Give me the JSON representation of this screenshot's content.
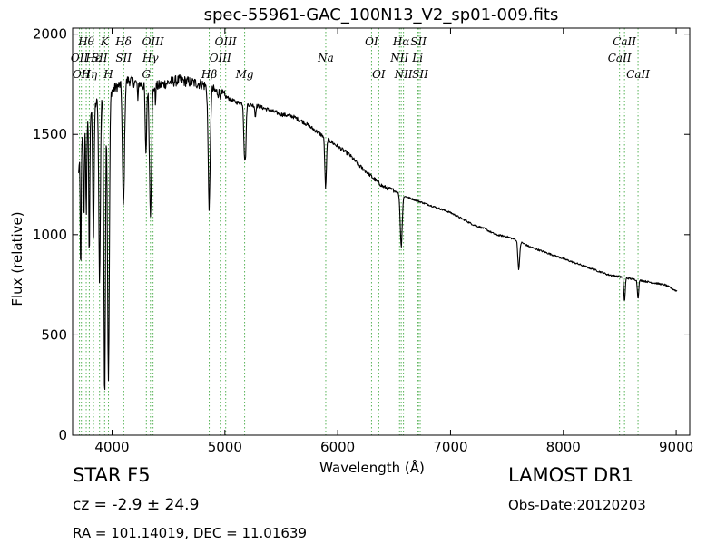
{
  "chart_data": {
    "type": "line",
    "title": "spec-55961-GAC_100N13_V2_sp01-009.fits",
    "xlabel": "Wavelength (Å)",
    "ylabel": "Flux (relative)",
    "xlim": [
      3650,
      9120
    ],
    "ylim": [
      0,
      2030
    ],
    "x_ticks": [
      4000,
      5000,
      6000,
      7000,
      8000,
      9000
    ],
    "y_ticks": [
      0,
      500,
      1000,
      1500,
      2000
    ],
    "grid": false,
    "line_color": "#000000",
    "marker_color": "#2ca02c",
    "continuum": {
      "x": [
        3700,
        3730,
        3760,
        3800,
        3850,
        3900,
        3950,
        4000,
        4050,
        4100,
        4150,
        4200,
        4250,
        4300,
        4350,
        4400,
        4450,
        4500,
        4600,
        4700,
        4800,
        4900,
        5000,
        5100,
        5200,
        5300,
        5400,
        5500,
        5600,
        5700,
        5800,
        5900,
        6000,
        6100,
        6200,
        6300,
        6400,
        6500,
        6600,
        6700,
        6800,
        6900,
        7000,
        7100,
        7200,
        7300,
        7400,
        7500,
        7600,
        7700,
        7800,
        7900,
        8000,
        8100,
        8200,
        8300,
        8400,
        8500,
        8600,
        8700,
        8800,
        8900,
        9000
      ],
      "y": [
        1300,
        1450,
        1550,
        1600,
        1650,
        1680,
        1700,
        1720,
        1740,
        1760,
        1770,
        1760,
        1750,
        1740,
        1730,
        1740,
        1750,
        1760,
        1770,
        1760,
        1750,
        1720,
        1690,
        1660,
        1650,
        1640,
        1620,
        1600,
        1590,
        1560,
        1520,
        1480,
        1440,
        1400,
        1340,
        1290,
        1240,
        1220,
        1190,
        1170,
        1150,
        1130,
        1110,
        1080,
        1050,
        1030,
        1000,
        990,
        970,
        940,
        920,
        900,
        880,
        860,
        840,
        820,
        800,
        790,
        780,
        770,
        760,
        750,
        720
      ]
    },
    "absorption": [
      {
        "x": 3722,
        "w": 4,
        "d": 600
      },
      {
        "x": 3750,
        "w": 4,
        "d": 450
      },
      {
        "x": 3771,
        "w": 4,
        "d": 500
      },
      {
        "x": 3798,
        "w": 5,
        "d": 700
      },
      {
        "x": 3835,
        "w": 6,
        "d": 650
      },
      {
        "x": 3889,
        "w": 7,
        "d": 900
      },
      {
        "x": 3934,
        "w": 7,
        "d": 1500
      },
      {
        "x": 3968,
        "w": 8,
        "d": 1420
      },
      {
        "x": 4101,
        "w": 9,
        "d": 620
      },
      {
        "x": 4227,
        "w": 3,
        "d": 100
      },
      {
        "x": 4300,
        "w": 6,
        "d": 350
      },
      {
        "x": 4340,
        "w": 9,
        "d": 620
      },
      {
        "x": 4384,
        "w": 3,
        "d": 80
      },
      {
        "x": 4861,
        "w": 9,
        "d": 590
      },
      {
        "x": 5172,
        "w": 6,
        "d": 200
      },
      {
        "x": 5183,
        "w": 6,
        "d": 230
      },
      {
        "x": 5270,
        "w": 4,
        "d": 60
      },
      {
        "x": 5893,
        "w": 7,
        "d": 250
      },
      {
        "x": 6563,
        "w": 9,
        "d": 260
      },
      {
        "x": 7605,
        "w": 8,
        "d": 140
      },
      {
        "x": 8542,
        "w": 6,
        "d": 120
      },
      {
        "x": 8662,
        "w": 6,
        "d": 90
      }
    ],
    "line_markers": [
      {
        "x": 3711,
        "row": 1,
        "label": "OII"
      },
      {
        "x": 3728,
        "row": 2,
        "label": "OII"
      },
      {
        "x": 3771,
        "row": 0,
        "label": "Hθ"
      },
      {
        "x": 3798,
        "row": 2,
        "label": "Hη"
      },
      {
        "x": 3835,
        "row": 1,
        "label": "Hε"
      },
      {
        "x": 3889,
        "row": 1,
        "label": "SII"
      },
      {
        "x": 3934,
        "row": 0,
        "label": "K"
      },
      {
        "x": 3968,
        "row": 2,
        "label": "H"
      },
      {
        "x": 4101,
        "row": 0,
        "label": "Hδ"
      },
      {
        "x": 4102,
        "row": 1,
        "label": "SII"
      },
      {
        "x": 4304,
        "row": 2,
        "label": "G"
      },
      {
        "x": 4340,
        "row": 1,
        "label": "Hγ"
      },
      {
        "x": 4363,
        "row": 0,
        "label": "OIII"
      },
      {
        "x": 4861,
        "row": 2,
        "label": "Hβ"
      },
      {
        "x": 4959,
        "row": 1,
        "label": "OIII"
      },
      {
        "x": 5007,
        "row": 0,
        "label": "OIII"
      },
      {
        "x": 5175,
        "row": 2,
        "label": "Mg"
      },
      {
        "x": 5894,
        "row": 1,
        "label": "Na"
      },
      {
        "x": 6300,
        "row": 0,
        "label": "OI"
      },
      {
        "x": 6364,
        "row": 2,
        "label": "OI"
      },
      {
        "x": 6548,
        "row": 1,
        "label": "NII"
      },
      {
        "x": 6563,
        "row": 0,
        "label": "Hα"
      },
      {
        "x": 6583,
        "row": 2,
        "label": "NII"
      },
      {
        "x": 6708,
        "row": 1,
        "label": "Li"
      },
      {
        "x": 6716,
        "row": 0,
        "label": "SII"
      },
      {
        "x": 6731,
        "row": 2,
        "label": "SII"
      },
      {
        "x": 8498,
        "row": 1,
        "label": "CaII"
      },
      {
        "x": 8542,
        "row": 0,
        "label": "CaII"
      },
      {
        "x": 8662,
        "row": 2,
        "label": "CaII"
      }
    ]
  },
  "info": {
    "object_class": "STAR   F5",
    "survey": "LAMOST DR1",
    "cz": "cz = -2.9 ± 24.9",
    "obs_date": "Obs-Date:20120203",
    "radec": "RA = 101.14019, DEC = 11.01639"
  }
}
